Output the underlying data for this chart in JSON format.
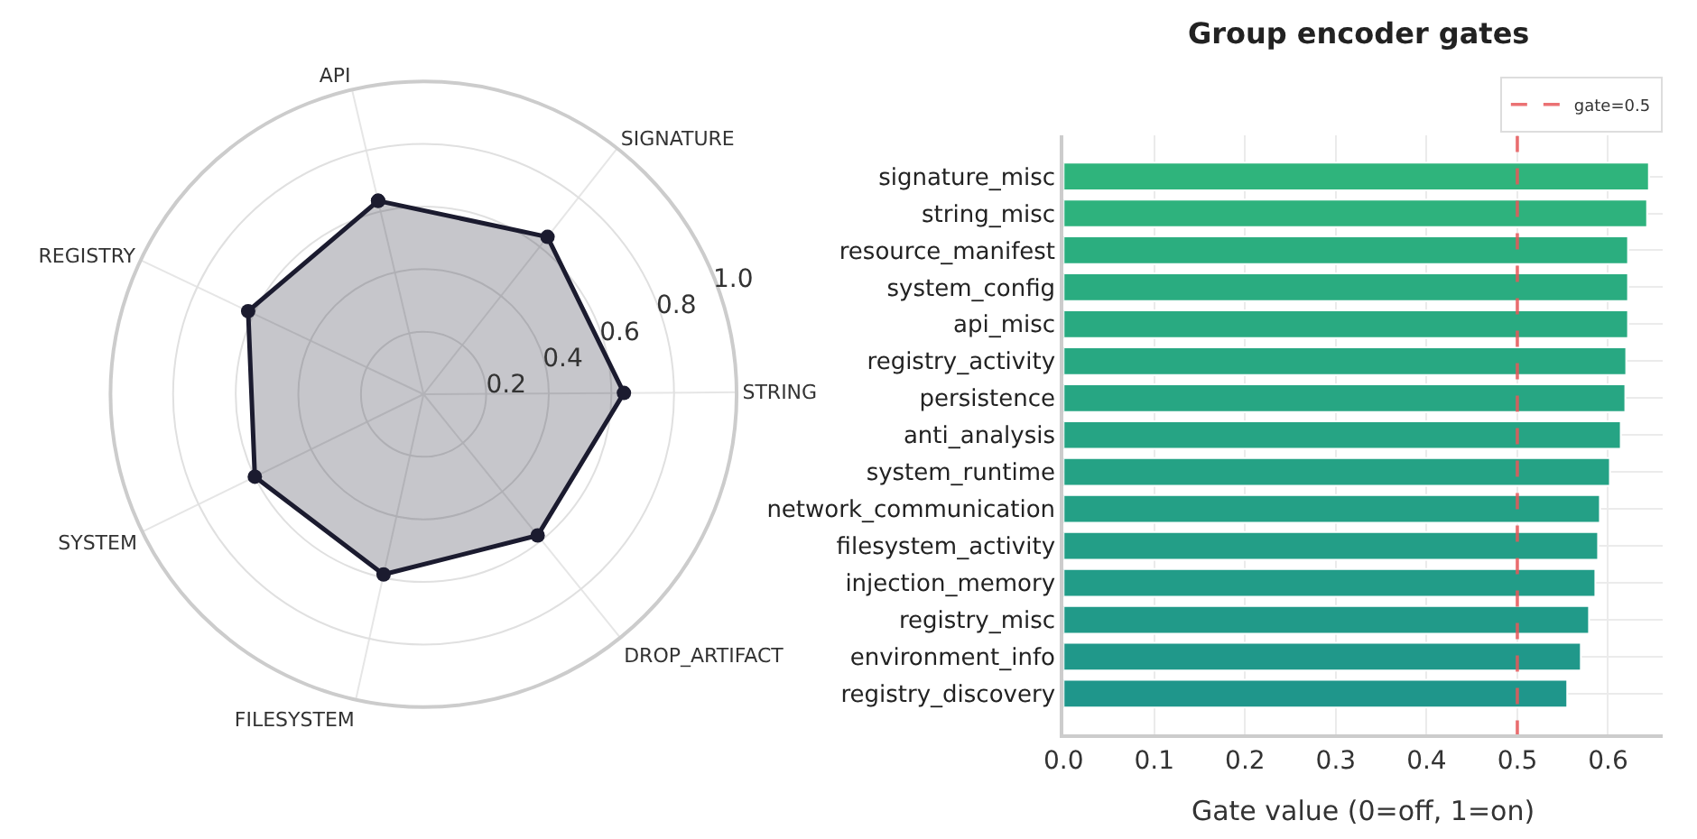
{
  "chart_data": [
    {
      "type": "radar",
      "categories": [
        "API",
        "SIGNATURE",
        "STRING",
        "DROP_ARTIFACT",
        "FILESYSTEM",
        "SYSTEM",
        "REGISTRY"
      ],
      "series": [
        {
          "color": "#1b1b2f",
          "values": [
            0.635,
            0.64,
            0.64,
            0.58,
            0.59,
            0.6,
            0.62
          ]
        }
      ],
      "ylim": [
        0,
        1
      ],
      "yticks": [
        0.2,
        0.4,
        0.6,
        0.8,
        {
          "value": 1,
          "label": "1.0"
        }
      ],
      "marker": "circle",
      "grid": true
    },
    {
      "type": "bar",
      "orientation": "horizontal",
      "title": "Group encoder gates",
      "xlabel": "Gate value (0=off, 1=on)",
      "categories": [
        "signature_misc",
        "string_misc",
        "resource_manifest",
        "system_config",
        "api_misc",
        "registry_activity",
        "persistence",
        "anti_analysis",
        "system_runtime",
        "network_communication",
        "filesystem_activity",
        "injection_memory",
        "registry_misc",
        "environment_info",
        "registry_discovery"
      ],
      "values": [
        0.645,
        0.643,
        0.622,
        0.622,
        0.622,
        0.62,
        0.619,
        0.614,
        0.602,
        0.591,
        0.589,
        0.586,
        0.579,
        0.57,
        0.555
      ],
      "colors": [
        "#2fb47c",
        "#2eb27d",
        "#2bae7f",
        "#2aac80",
        "#29aa81",
        "#28a882",
        "#27a683",
        "#26a484",
        "#25a285",
        "#24a086",
        "#239e87",
        "#229c88",
        "#219a89",
        "#20988a",
        "#1f968b"
      ],
      "xlim": [
        0,
        0.66
      ],
      "xticks": [
        {
          "value": 0,
          "label": "0.0"
        },
        {
          "value": 0.1,
          "label": "0.1"
        },
        {
          "value": 0.2,
          "label": "0.2"
        },
        {
          "value": 0.3,
          "label": "0.3"
        },
        {
          "value": 0.4,
          "label": "0.4"
        },
        {
          "value": 0.5,
          "label": "0.5"
        },
        {
          "value": 0.6,
          "label": "0.6"
        }
      ],
      "ref_lines": [
        {
          "axis": "x",
          "value": 0.5,
          "label": "gate=0.5",
          "color": "#e8585a",
          "line_style": "dashed"
        }
      ],
      "legend": "top right",
      "grid": true
    }
  ]
}
